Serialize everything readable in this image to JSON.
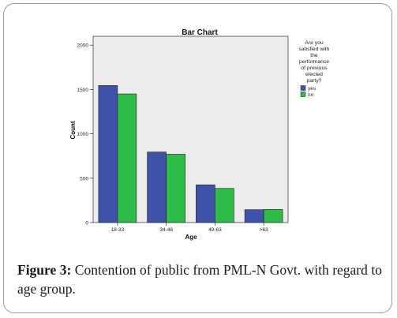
{
  "chart_data": {
    "type": "bar",
    "title": "Bar Chart",
    "xlabel": "Age",
    "ylabel": "Count",
    "categories": [
      "18-33",
      "34-48",
      "49-63",
      ">63"
    ],
    "series": [
      {
        "name": "yes",
        "values": [
          1545,
          795,
          425,
          145
        ]
      },
      {
        "name": "no",
        "values": [
          1450,
          770,
          385,
          148
        ]
      }
    ],
    "ylim": [
      0,
      2100
    ],
    "yticks": [
      0,
      500,
      1000,
      1500,
      2000
    ],
    "legend": {
      "title_lines": [
        "Are you",
        "satisfied with",
        "the",
        "performance",
        "of previous",
        "elected",
        "party?"
      ],
      "placement": "right"
    },
    "colors": {
      "yes": "#3f51a8",
      "no": "#2ebb4a",
      "plot_bg": "#ececec"
    },
    "grid": false
  },
  "caption": {
    "label": "Figure 3:",
    "text": " Contention of public from PML-N Govt. with regard to age group."
  }
}
